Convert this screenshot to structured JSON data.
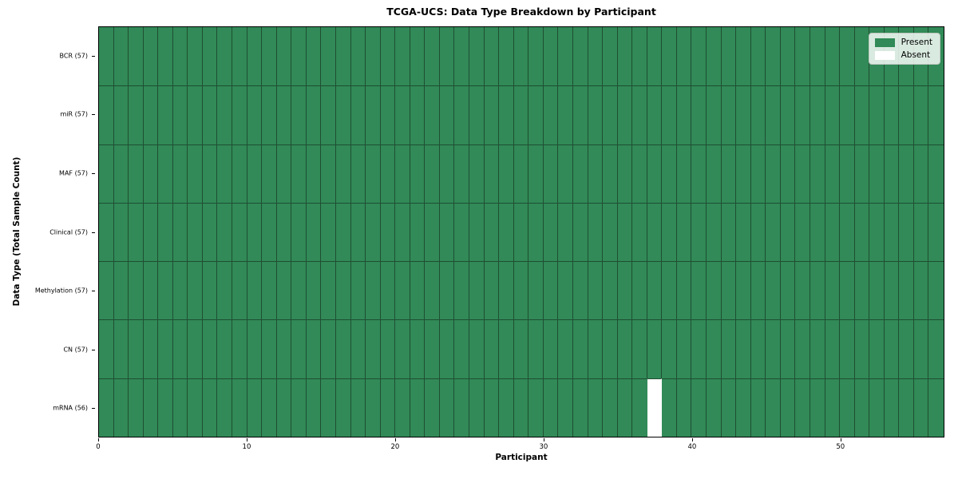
{
  "title": "TCGA-UCS: Data Type Breakdown by Participant",
  "xlabel": "Participant",
  "ylabel": "Data Type (Total Sample Count)",
  "colors": {
    "present": "#318a57",
    "absent": "#ffffff",
    "edge": "#1f4e33",
    "frame": "#000000"
  },
  "legend": {
    "items": [
      {
        "label": "Present",
        "color": "#318a57"
      },
      {
        "label": "Absent",
        "color": "#ffffff"
      }
    ]
  },
  "chart_data": {
    "type": "heatmap",
    "title": "TCGA-UCS: Data Type Breakdown by Participant",
    "xlabel": "Participant",
    "ylabel": "Data Type (Total Sample Count)",
    "n_participants": 57,
    "x_ticks": [
      0,
      10,
      20,
      30,
      40,
      50
    ],
    "legend_position": "upper right",
    "grid": false,
    "value_encoding": {
      "1": "Present",
      "0": "Absent"
    },
    "rows": [
      {
        "label": "BCR (57)",
        "data_type": "BCR",
        "present_count": 57,
        "absent_participants": []
      },
      {
        "label": "miR (57)",
        "data_type": "miR",
        "present_count": 57,
        "absent_participants": []
      },
      {
        "label": "MAF (57)",
        "data_type": "MAF",
        "present_count": 57,
        "absent_participants": []
      },
      {
        "label": "Clinical (57)",
        "data_type": "Clinical",
        "present_count": 57,
        "absent_participants": []
      },
      {
        "label": "Methylation (57)",
        "data_type": "Methylation",
        "present_count": 57,
        "absent_participants": []
      },
      {
        "label": "CN (57)",
        "data_type": "CN",
        "present_count": 57,
        "absent_participants": []
      },
      {
        "label": "mRNA (56)",
        "data_type": "mRNA",
        "present_count": 56,
        "absent_participants": [
          37
        ]
      }
    ]
  }
}
